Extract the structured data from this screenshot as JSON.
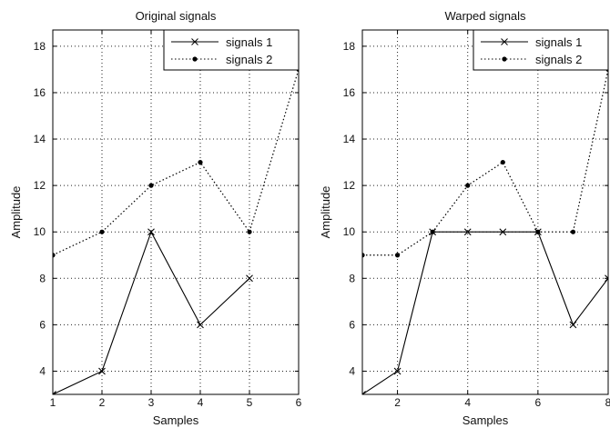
{
  "chart_data": [
    {
      "type": "line",
      "title": "Original signals",
      "xlabel": "Samples",
      "ylabel": "Amplitude",
      "xlim": [
        1,
        6
      ],
      "ylim": [
        3,
        18.7
      ],
      "xticks": [
        1,
        2,
        3,
        4,
        5,
        6
      ],
      "yticks": [
        4,
        6,
        8,
        10,
        12,
        14,
        16,
        18
      ],
      "grid": true,
      "legend_position": "top-right",
      "series": [
        {
          "name": "signals 1",
          "style": "solid",
          "marker": "x",
          "x": [
            1,
            2,
            3,
            4,
            5
          ],
          "y": [
            3,
            4,
            10,
            6,
            8
          ]
        },
        {
          "name": "signals 2",
          "style": "dotted",
          "marker": "dot",
          "x": [
            1,
            2,
            3,
            4,
            5,
            6
          ],
          "y": [
            9,
            10,
            12,
            13,
            10,
            17
          ]
        }
      ]
    },
    {
      "type": "line",
      "title": "Warped signals",
      "xlabel": "Samples",
      "ylabel": "Amplitude",
      "xlim": [
        1,
        8
      ],
      "ylim": [
        3,
        18.7
      ],
      "xticks": [
        2,
        4,
        6,
        8
      ],
      "yticks": [
        4,
        6,
        8,
        10,
        12,
        14,
        16,
        18
      ],
      "grid": true,
      "legend_position": "top-right",
      "series": [
        {
          "name": "signals 1",
          "style": "solid",
          "marker": "x",
          "x": [
            1,
            2,
            3,
            4,
            5,
            6,
            7,
            8
          ],
          "y": [
            3,
            4,
            10,
            10,
            10,
            10,
            6,
            8
          ]
        },
        {
          "name": "signals 2",
          "style": "dotted",
          "marker": "dot",
          "x": [
            1,
            2,
            3,
            4,
            5,
            6,
            7,
            8
          ],
          "y": [
            9,
            9,
            10,
            12,
            13,
            10,
            10,
            17
          ]
        }
      ]
    }
  ]
}
